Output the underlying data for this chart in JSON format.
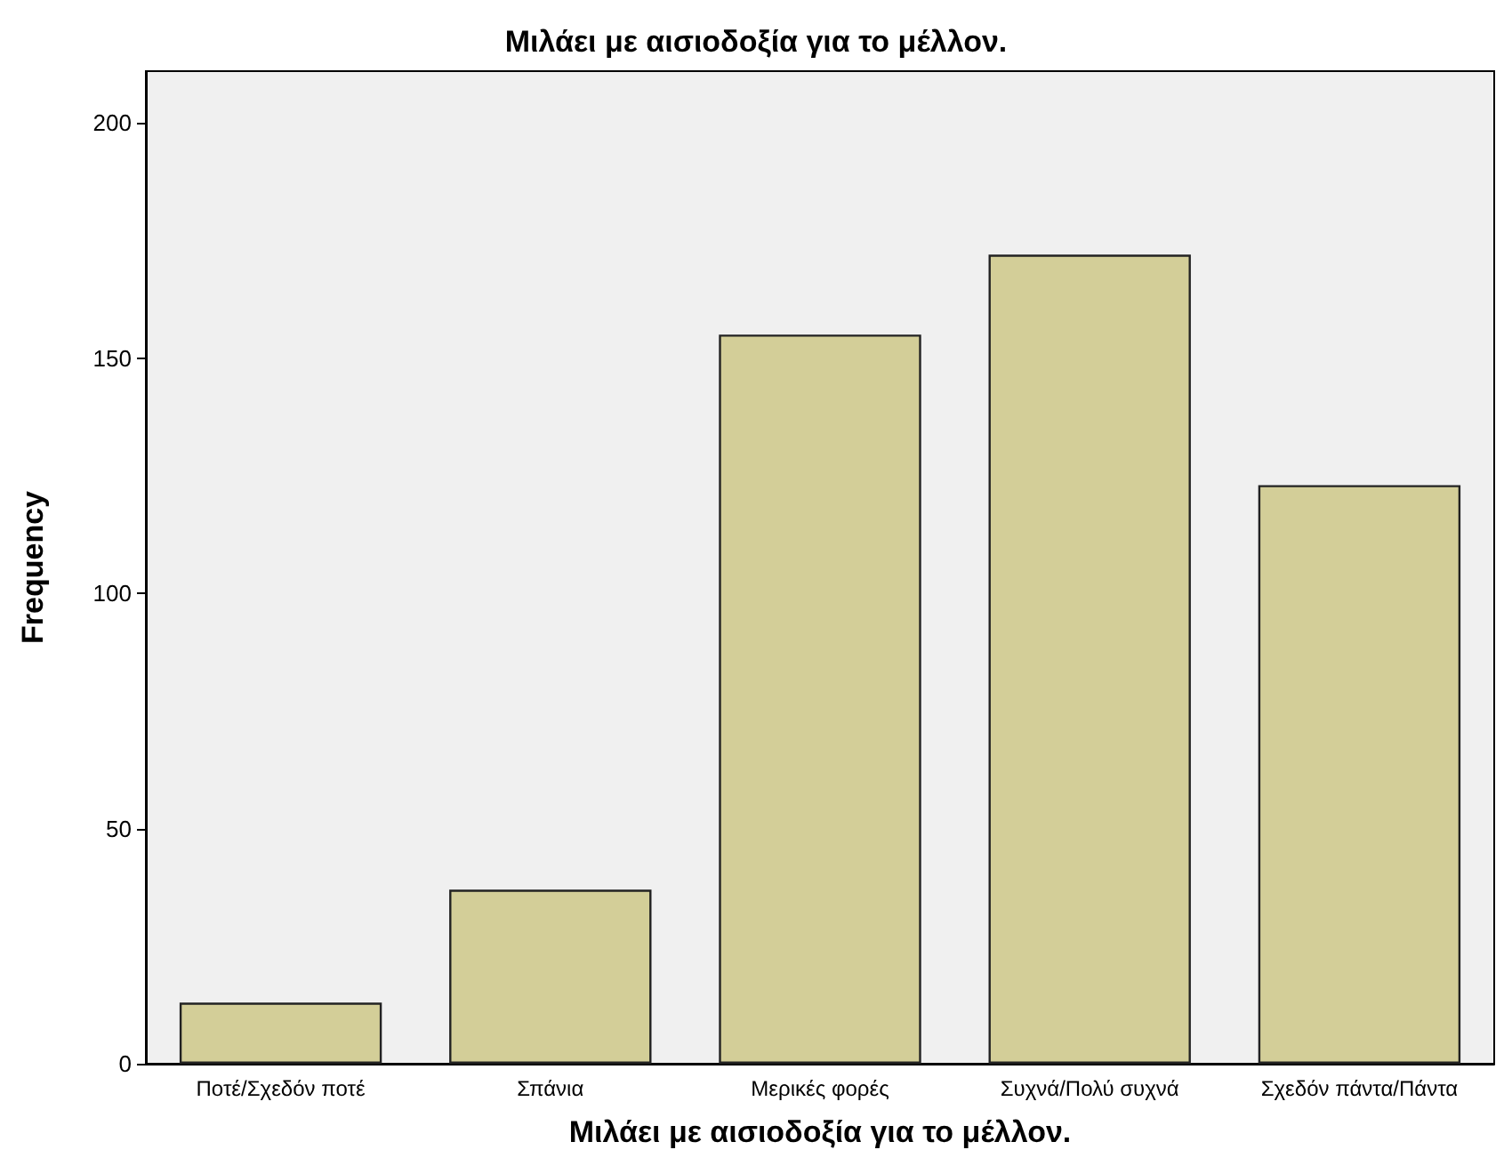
{
  "chart_data": {
    "type": "bar",
    "title": "Μιλάει με αισιοδοξία για το μέλλον.",
    "xlabel": "Μιλάει με αισιοδοξία για το μέλλον.",
    "ylabel": "Frequency",
    "categories": [
      "Ποτέ/Σχεδόν ποτέ",
      "Σπάνια",
      "Μερικές φορές",
      "Συχνά/Πολύ συχνά",
      "Σχεδόν πάντα/Πάντα"
    ],
    "values": [
      13,
      37,
      155,
      172,
      123
    ],
    "color": "#d3ce98",
    "ylim": [
      0,
      211
    ],
    "yticks": [
      0,
      50,
      100,
      150,
      200
    ],
    "grid": false
  }
}
